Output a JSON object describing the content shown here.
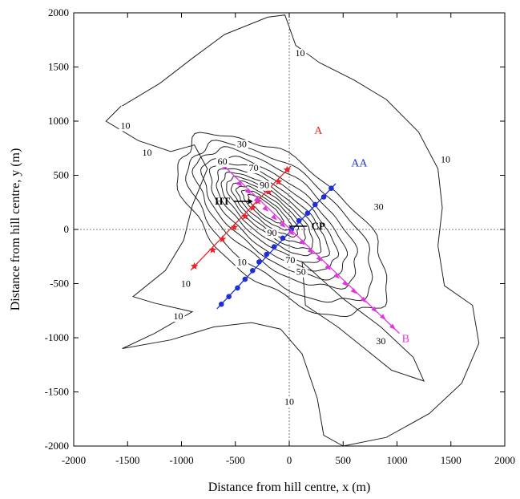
{
  "chart_data": {
    "type": "contour",
    "xlabel": "Distance from hill centre, x (m)",
    "ylabel": "Distance from hill centre, y (m)",
    "xlim": [
      -2000,
      2000
    ],
    "ylim": [
      -2000,
      2000
    ],
    "xticks": [
      -2000,
      -1500,
      -1000,
      -500,
      0,
      500,
      1000,
      1500,
      2000
    ],
    "yticks": [
      -2000,
      -1500,
      -1000,
      -500,
      0,
      500,
      1000,
      1500,
      2000
    ],
    "zero_lines": true,
    "contour_labels": [
      {
        "text": "10",
        "x": 100,
        "y": 1600
      },
      {
        "text": "10",
        "x": 1450,
        "y": 620
      },
      {
        "text": "10",
        "x": -1520,
        "y": 930
      },
      {
        "text": "10",
        "x": -1320,
        "y": 680
      },
      {
        "text": "10",
        "x": -960,
        "y": -530
      },
      {
        "text": "10",
        "x": -1030,
        "y": -830
      },
      {
        "text": "10",
        "x": 0,
        "y": -1620
      },
      {
        "text": "10",
        "x": -440,
        "y": -330
      },
      {
        "text": "30",
        "x": -440,
        "y": 760
      },
      {
        "text": "30",
        "x": 830,
        "y": 180
      },
      {
        "text": "30",
        "x": 850,
        "y": -1060
      },
      {
        "text": "50",
        "x": 110,
        "y": -420
      },
      {
        "text": "60",
        "x": -620,
        "y": 600
      },
      {
        "text": "70",
        "x": -330,
        "y": 540
      },
      {
        "text": "70",
        "x": 10,
        "y": -310
      },
      {
        "text": "90",
        "x": -230,
        "y": 380
      },
      {
        "text": "90",
        "x": -160,
        "y": -60
      }
    ],
    "series": [
      {
        "name": "A",
        "color": "#e8242b",
        "marker": "star",
        "x": [
          -880,
          -710,
          -620,
          -510,
          -410,
          -340,
          -290,
          -190,
          -100,
          -20
        ],
        "y": [
          -340,
          -190,
          -90,
          20,
          120,
          200,
          260,
          350,
          440,
          550
        ]
      },
      {
        "name": "AA",
        "color": "#1f2fd8",
        "marker": "circle",
        "x": [
          -630,
          -560,
          -480,
          -410,
          -340,
          -280,
          -210,
          -140,
          -60,
          20,
          90,
          170,
          240,
          320,
          390
        ],
        "y": [
          -690,
          -620,
          -540,
          -460,
          -380,
          -300,
          -230,
          -160,
          -80,
          0,
          80,
          150,
          230,
          300,
          380
        ]
      },
      {
        "name": "B",
        "color": "#e034e0",
        "marker": "triangle",
        "x": [
          -600,
          -460,
          -380,
          -300,
          -220,
          -140,
          -60,
          20,
          120,
          200,
          280,
          360,
          440,
          520,
          600,
          690,
          790,
          870,
          960
        ],
        "y": [
          580,
          420,
          350,
          270,
          190,
          110,
          40,
          -30,
          -120,
          -200,
          -270,
          -350,
          -430,
          -500,
          -570,
          -650,
          -740,
          -810,
          -900
        ]
      }
    ],
    "annotations": [
      {
        "text": "A",
        "x": 270,
        "y": 880
      },
      {
        "text": "AA",
        "x": 650,
        "y": 580
      },
      {
        "text": "B",
        "x": 1080,
        "y": -1040
      },
      {
        "text": "HT",
        "x": -620,
        "y": 230
      },
      {
        "text": "CP",
        "x": 270,
        "y": 0
      }
    ]
  }
}
